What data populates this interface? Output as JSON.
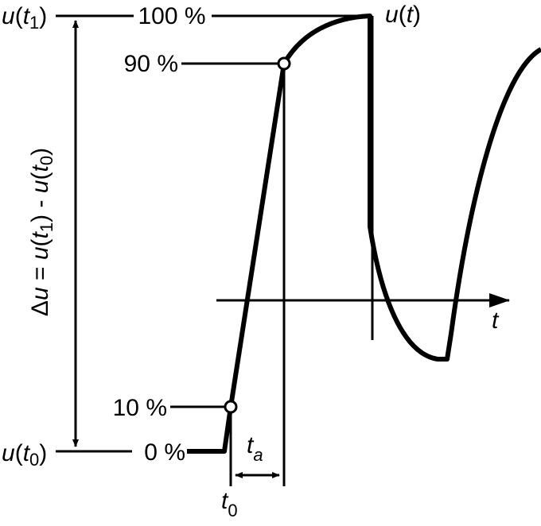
{
  "levels": {
    "top": {
      "symbol": [
        "u",
        "(",
        "t",
        "1",
        ")"
      ],
      "percent": "100 %"
    },
    "p90": "90 %",
    "p10": "10 %",
    "bottom": {
      "symbol": [
        "u",
        "(",
        "t",
        "0",
        ")"
      ],
      "percent": "0 %"
    }
  },
  "curve": {
    "label": [
      "u",
      "(",
      "t",
      ")"
    ]
  },
  "axis": {
    "label": "t"
  },
  "delta": [
    "Δ",
    "u",
    " = ",
    "u",
    "(",
    "t",
    "1",
    ") - ",
    "u",
    "(",
    "t",
    "0",
    ")"
  ],
  "rise_time": [
    "t",
    "a"
  ],
  "start": [
    "t",
    "0"
  ]
}
